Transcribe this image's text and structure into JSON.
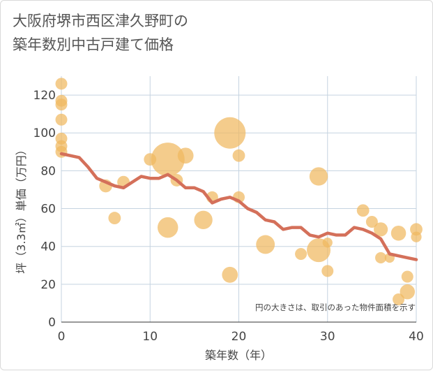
{
  "title_line1": "大阪府堺市西区津久野町の",
  "title_line2": "築年数別中古戸建て価格",
  "chart_data": {
    "type": "scatter",
    "xlabel": "築年数（年）",
    "ylabel": "坪（3.3㎡）単価（万円）",
    "xlim": [
      0,
      40
    ],
    "ylim": [
      0,
      130
    ],
    "x_ticks": [
      0,
      10,
      20,
      30,
      40
    ],
    "y_ticks": [
      0,
      20,
      40,
      60,
      80,
      100,
      120
    ],
    "grid": true,
    "note": "円の大きさは、取引のあった物件面積を示す",
    "colors": {
      "bubble": "#f0b860",
      "line": "#d4705a",
      "grid": "#c5d3e0"
    },
    "bubbles": [
      {
        "x": 0,
        "y": 126,
        "s": 1
      },
      {
        "x": 0,
        "y": 117,
        "s": 1
      },
      {
        "x": 0,
        "y": 115,
        "s": 1
      },
      {
        "x": 0,
        "y": 107,
        "s": 1
      },
      {
        "x": 0,
        "y": 97,
        "s": 1
      },
      {
        "x": 0,
        "y": 93,
        "s": 1
      },
      {
        "x": 0,
        "y": 90,
        "s": 1
      },
      {
        "x": 5,
        "y": 72,
        "s": 1.2
      },
      {
        "x": 6,
        "y": 55,
        "s": 1.1
      },
      {
        "x": 7,
        "y": 74,
        "s": 1.1
      },
      {
        "x": 10,
        "y": 86,
        "s": 1.1
      },
      {
        "x": 12,
        "y": 86,
        "s": 8
      },
      {
        "x": 12,
        "y": 50,
        "s": 3
      },
      {
        "x": 13,
        "y": 75,
        "s": 1.1
      },
      {
        "x": 14,
        "y": 88,
        "s": 1.8
      },
      {
        "x": 16,
        "y": 54,
        "s": 2.4
      },
      {
        "x": 17,
        "y": 66,
        "s": 1
      },
      {
        "x": 19,
        "y": 100,
        "s": 7
      },
      {
        "x": 19,
        "y": 25,
        "s": 1.8
      },
      {
        "x": 20,
        "y": 88,
        "s": 1.1
      },
      {
        "x": 20,
        "y": 66,
        "s": 1
      },
      {
        "x": 23,
        "y": 41,
        "s": 2.5
      },
      {
        "x": 27,
        "y": 36,
        "s": 1
      },
      {
        "x": 29,
        "y": 77,
        "s": 2.4
      },
      {
        "x": 29,
        "y": 38,
        "s": 4
      },
      {
        "x": 30,
        "y": 42,
        "s": 0.7
      },
      {
        "x": 30,
        "y": 27,
        "s": 1
      },
      {
        "x": 34,
        "y": 59,
        "s": 1.1
      },
      {
        "x": 35,
        "y": 53,
        "s": 1
      },
      {
        "x": 36,
        "y": 49,
        "s": 1.4
      },
      {
        "x": 36,
        "y": 34,
        "s": 0.9
      },
      {
        "x": 37,
        "y": 34,
        "s": 0.7
      },
      {
        "x": 38,
        "y": 47,
        "s": 1.6
      },
      {
        "x": 38,
        "y": 12,
        "s": 1
      },
      {
        "x": 39,
        "y": 24,
        "s": 1
      },
      {
        "x": 39,
        "y": 16,
        "s": 1.6
      },
      {
        "x": 40,
        "y": 49,
        "s": 1.1
      },
      {
        "x": 40,
        "y": 45,
        "s": 0.8
      }
    ],
    "trend": [
      {
        "x": 0,
        "y": 89
      },
      {
        "x": 1,
        "y": 88
      },
      {
        "x": 2,
        "y": 87
      },
      {
        "x": 3,
        "y": 82
      },
      {
        "x": 4,
        "y": 76
      },
      {
        "x": 5,
        "y": 74
      },
      {
        "x": 6,
        "y": 72
      },
      {
        "x": 7,
        "y": 71
      },
      {
        "x": 8,
        "y": 74
      },
      {
        "x": 9,
        "y": 77
      },
      {
        "x": 10,
        "y": 76
      },
      {
        "x": 11,
        "y": 76
      },
      {
        "x": 12,
        "y": 78
      },
      {
        "x": 13,
        "y": 75
      },
      {
        "x": 14,
        "y": 71
      },
      {
        "x": 15,
        "y": 71
      },
      {
        "x": 16,
        "y": 69
      },
      {
        "x": 17,
        "y": 63
      },
      {
        "x": 18,
        "y": 65
      },
      {
        "x": 19,
        "y": 66
      },
      {
        "x": 20,
        "y": 64
      },
      {
        "x": 21,
        "y": 60
      },
      {
        "x": 22,
        "y": 58
      },
      {
        "x": 23,
        "y": 54
      },
      {
        "x": 24,
        "y": 53
      },
      {
        "x": 25,
        "y": 49
      },
      {
        "x": 26,
        "y": 50
      },
      {
        "x": 27,
        "y": 50
      },
      {
        "x": 28,
        "y": 46
      },
      {
        "x": 29,
        "y": 45
      },
      {
        "x": 30,
        "y": 47
      },
      {
        "x": 31,
        "y": 46
      },
      {
        "x": 32,
        "y": 46
      },
      {
        "x": 33,
        "y": 50
      },
      {
        "x": 34,
        "y": 49
      },
      {
        "x": 35,
        "y": 47
      },
      {
        "x": 36,
        "y": 44
      },
      {
        "x": 37,
        "y": 36
      },
      {
        "x": 38,
        "y": 35
      },
      {
        "x": 39,
        "y": 34
      },
      {
        "x": 40,
        "y": 33
      }
    ]
  }
}
